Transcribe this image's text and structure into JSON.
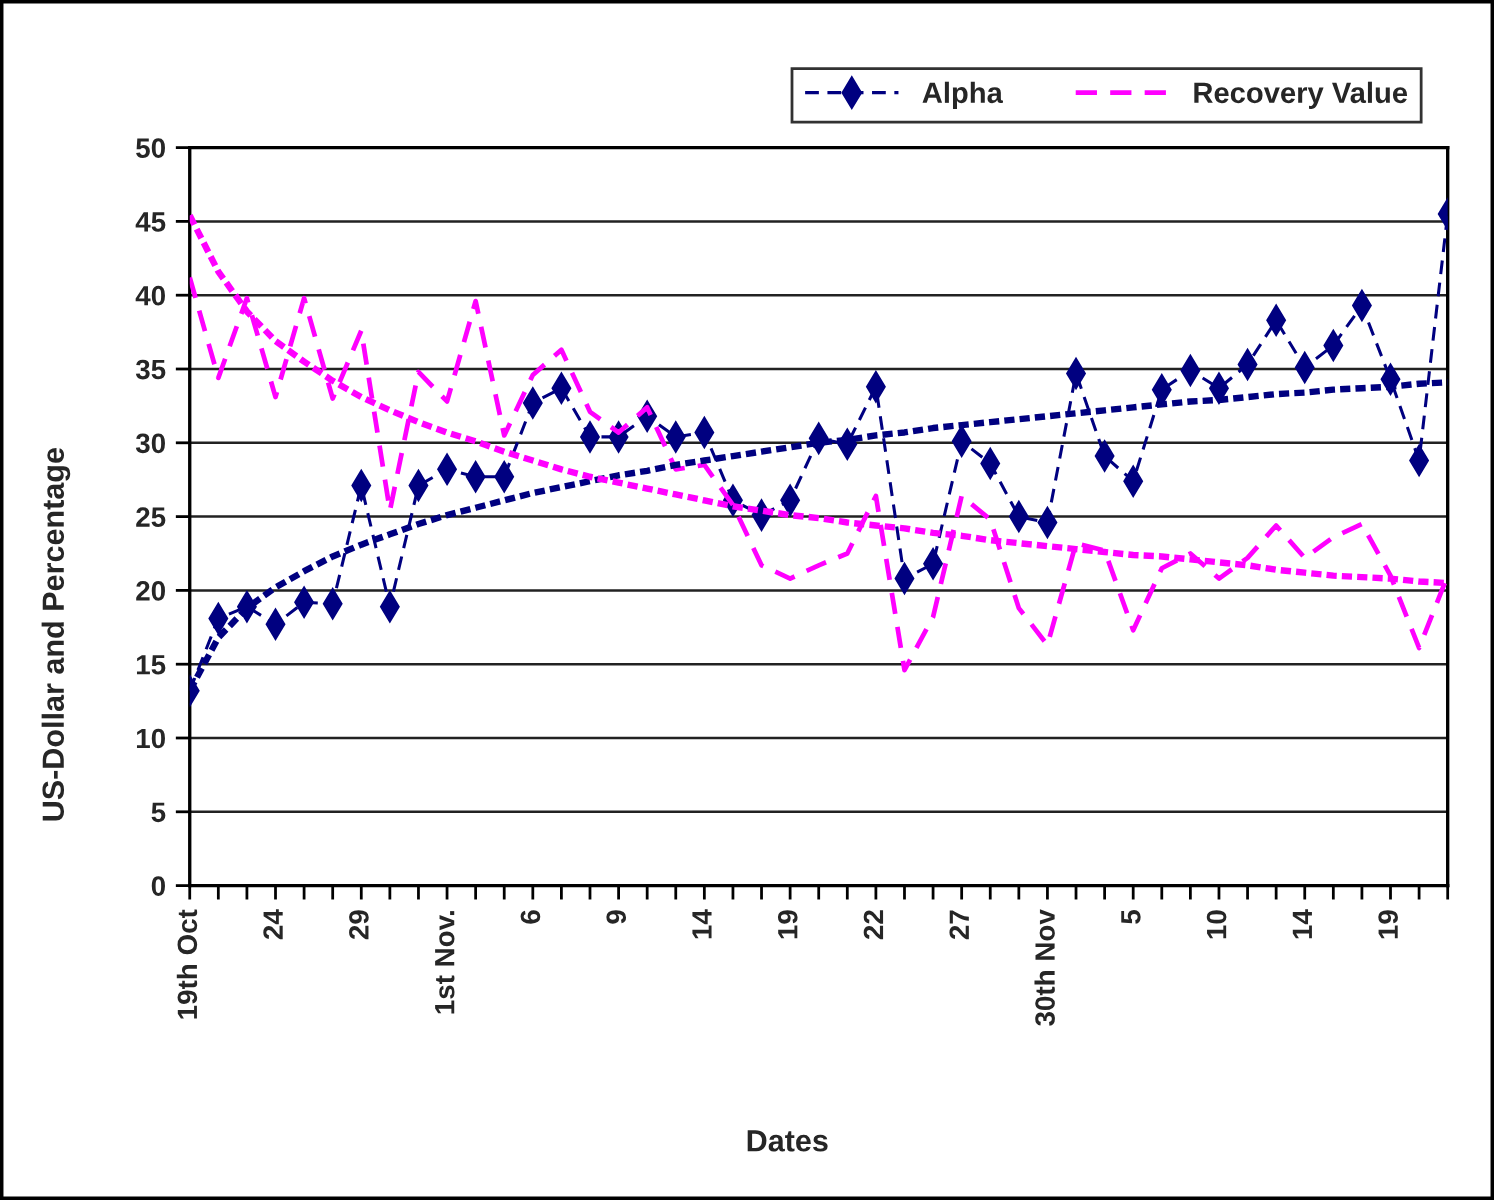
{
  "chart_data": {
    "type": "line",
    "xlabel": "Dates",
    "ylabel": "US-Dollar and Percentage",
    "categories": [
      "19th Oct",
      null,
      null,
      "24",
      null,
      null,
      "29",
      null,
      null,
      "1st Nov.",
      null,
      null,
      "6",
      null,
      null,
      "9",
      null,
      null,
      "14",
      null,
      null,
      "19",
      null,
      null,
      "22",
      null,
      null,
      "27",
      null,
      null,
      "30th Nov",
      null,
      null,
      "5",
      null,
      null,
      "10",
      null,
      null,
      "14",
      null,
      null,
      "19",
      null,
      null
    ],
    "series": [
      {
        "name": "Alpha",
        "color": "#000080",
        "marker": "diamond",
        "line_style": "dashed",
        "values": [
          13.2,
          18.1,
          18.9,
          17.7,
          19.2,
          19.1,
          27.1,
          18.9,
          27.1,
          28.2,
          27.7,
          27.7,
          32.7,
          33.7,
          30.4,
          30.4,
          31.8,
          30.4,
          30.7,
          26.1,
          25.1,
          26.1,
          30.3,
          29.9,
          33.8,
          20.8,
          21.8,
          30.1,
          28.6,
          25.0,
          24.6,
          34.7,
          29.1,
          27.4,
          33.6,
          34.9,
          33.7,
          35.3,
          38.3,
          35.1,
          36.6,
          39.3,
          34.3,
          28.8,
          45.5
        ]
      },
      {
        "name": "Recovery Value",
        "color": "#ff00ff",
        "marker": "none",
        "line_style": "dashed",
        "values": [
          41.2,
          34.4,
          39.8,
          33.1,
          39.8,
          33.0,
          37.6,
          25.4,
          34.8,
          32.8,
          39.6,
          30.5,
          34.6,
          36.3,
          32.1,
          30.7,
          32.4,
          28.2,
          28.5,
          25.8,
          21.7,
          20.8,
          21.7,
          22.5,
          26.4,
          14.6,
          18.2,
          26.4,
          24.8,
          18.8,
          16.3,
          23.2,
          22.7,
          17.3,
          21.5,
          22.5,
          20.8,
          22.2,
          24.4,
          22.2,
          23.6,
          24.5,
          21.0,
          16.1,
          21.0
        ]
      },
      {
        "type": "line",
        "color": "#000080",
        "marker": "none",
        "line_style": "dotted",
        "values": [
          13.2,
          16.8,
          18.8,
          20.2,
          21.3,
          22.3,
          23.1,
          23.8,
          24.5,
          25.1,
          25.6,
          26.1,
          26.6,
          27.0,
          27.4,
          27.8,
          28.1,
          28.5,
          28.8,
          29.1,
          29.4,
          29.7,
          30.0,
          30.2,
          30.5,
          30.7,
          31.0,
          31.2,
          31.4,
          31.6,
          31.8,
          32.0,
          32.2,
          32.4,
          32.6,
          32.8,
          32.9,
          33.1,
          33.3,
          33.4,
          33.6,
          33.7,
          33.8,
          34.0,
          34.1
        ]
      },
      {
        "type": "line",
        "color": "#ff00ff",
        "marker": "none",
        "line_style": "dotted",
        "values": [
          45.4,
          41.6,
          38.9,
          36.9,
          35.5,
          34.2,
          33.1,
          32.2,
          31.4,
          30.7,
          30.1,
          29.4,
          28.8,
          28.2,
          27.7,
          27.3,
          26.9,
          26.5,
          26.1,
          25.7,
          25.4,
          25.1,
          24.9,
          24.6,
          24.4,
          24.2,
          23.9,
          23.7,
          23.4,
          23.2,
          23.0,
          22.8,
          22.6,
          22.4,
          22.3,
          22.1,
          21.9,
          21.7,
          21.4,
          21.2,
          21.0,
          20.9,
          20.8,
          20.6,
          20.5
        ]
      }
    ],
    "ylim": [
      0,
      50
    ],
    "yticks": [
      0,
      5,
      10,
      15,
      20,
      25,
      30,
      35,
      40,
      45,
      50
    ],
    "grid": "y",
    "legend": "top right"
  }
}
